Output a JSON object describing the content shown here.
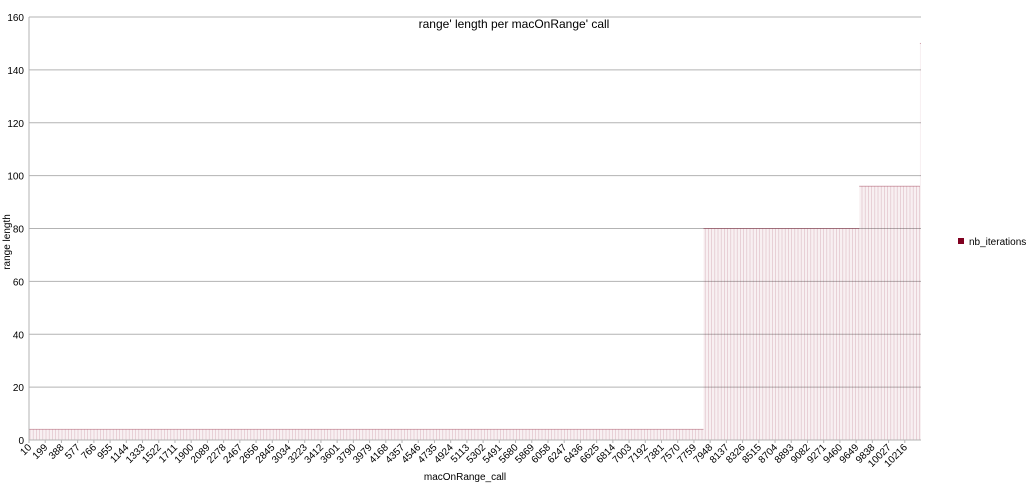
{
  "chart_data": {
    "type": "bar",
    "title": "range' length per macOnRange' call",
    "xlabel": "macOnRange_call",
    "ylabel": "range length",
    "ylim": [
      0,
      160
    ],
    "yticks": [
      0,
      20,
      40,
      60,
      80,
      100,
      120,
      140,
      160
    ],
    "x_range": [
      10,
      10405
    ],
    "x_tick_labels": [
      "10",
      "199",
      "388",
      "577",
      "766",
      "955",
      "1144",
      "1333",
      "1522",
      "1711",
      "1900",
      "2089",
      "2278",
      "2467",
      "2656",
      "2845",
      "3034",
      "3223",
      "3412",
      "3601",
      "3790",
      "3979",
      "4168",
      "4357",
      "4546",
      "4735",
      "4924",
      "5113",
      "5302",
      "5491",
      "5680",
      "5869",
      "6058",
      "6247",
      "6436",
      "6625",
      "6814",
      "7003",
      "7192",
      "7381",
      "7570",
      "7759",
      "7948",
      "8137",
      "8326",
      "8515",
      "8704",
      "8893",
      "9082",
      "9271",
      "9460",
      "9649",
      "9838",
      "10027",
      "10216"
    ],
    "grid": true,
    "legend_position": "right",
    "series": [
      {
        "name": "nb_iterations",
        "color": "#800020",
        "segments": [
          {
            "x_start": 10,
            "x_end": 7870,
            "value": 4
          },
          {
            "x_start": 7870,
            "x_end": 9685,
            "value": 80
          },
          {
            "x_start": 9685,
            "x_end": 10392,
            "value": 96
          },
          {
            "x_start": 10392,
            "x_end": 10405,
            "value": 150
          }
        ]
      }
    ]
  }
}
